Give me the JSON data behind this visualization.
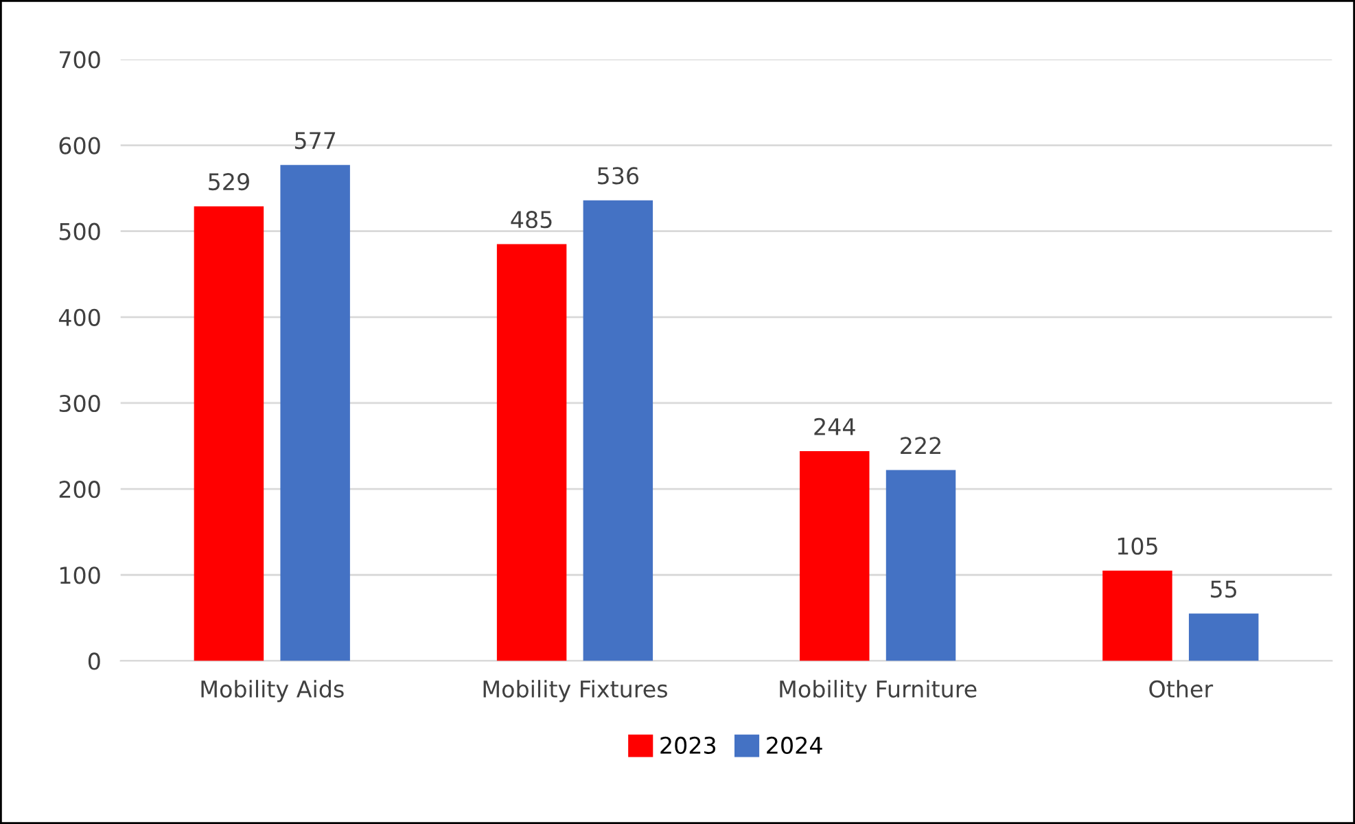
{
  "chart_data": {
    "type": "bar",
    "categories": [
      "Mobility Aids",
      "Mobility Fixtures",
      "Mobility Furniture",
      "Other"
    ],
    "series": [
      {
        "name": "2023",
        "color": "#ff0000",
        "values": [
          529,
          485,
          244,
          105
        ]
      },
      {
        "name": "2024",
        "color": "#4472c4",
        "values": [
          577,
          536,
          222,
          55
        ]
      }
    ],
    "ylim": [
      0,
      700
    ],
    "yticks": [
      0,
      100,
      200,
      300,
      400,
      500,
      600,
      700
    ],
    "grid": "y",
    "legend": "bottom",
    "data_labels": true
  }
}
